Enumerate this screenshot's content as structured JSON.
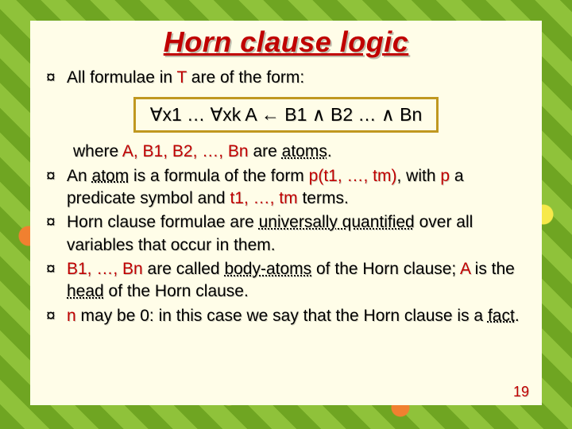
{
  "title": "Horn clause logic",
  "intro_prefix": "All formulae in ",
  "intro_T": "T",
  "intro_suffix": " are of the form:",
  "formula": {
    "forall": "∀",
    "x1": "x1",
    "ellipsis": " … ",
    "xk": "xk",
    "gap": "    ",
    "A": "A",
    "larrow": " ← ",
    "B1": "B1",
    "and": " ∧ ",
    "B2": "B2",
    "tail": " … ∧ ",
    "Bn": "Bn"
  },
  "where_prefix": "where ",
  "where_list": "A, B1, B2, …, Bn",
  "where_mid": " are ",
  "where_atoms": "atoms",
  "where_end": ".",
  "atom_p1": "An ",
  "atom_word": "atom",
  "atom_p2": " is a formula of the form ",
  "atom_form": "p(t1, …, tm)",
  "atom_p3": ", with ",
  "atom_p": "p",
  "atom_p4": " a predicate symbol and ",
  "atom_terms": "t1, …, tm",
  "atom_p5": " terms.",
  "uq_p1": "Horn clause formulae are ",
  "uq_word": "universally quantified",
  "uq_p2": " over all variables that occur in them.",
  "ba_list": "B1, …, Bn",
  "ba_p1": " are called ",
  "ba_word": "body-atoms",
  "ba_p2": " of the Horn clause; ",
  "ba_A": "A",
  "ba_p3": " is the ",
  "ba_head": "head",
  "ba_p4": " of the Horn clause.",
  "fact_n": "n",
  "fact_p1": " may be 0: in this case we say that the  Horn clause is a ",
  "fact_word": "fact",
  "fact_end": ".",
  "bullet_glyph": "¤",
  "page_number": "19",
  "colors": {
    "title": "#c00000",
    "accent": "#c00000",
    "box_border": "#c09820",
    "panel_bg": "#fffde8"
  }
}
